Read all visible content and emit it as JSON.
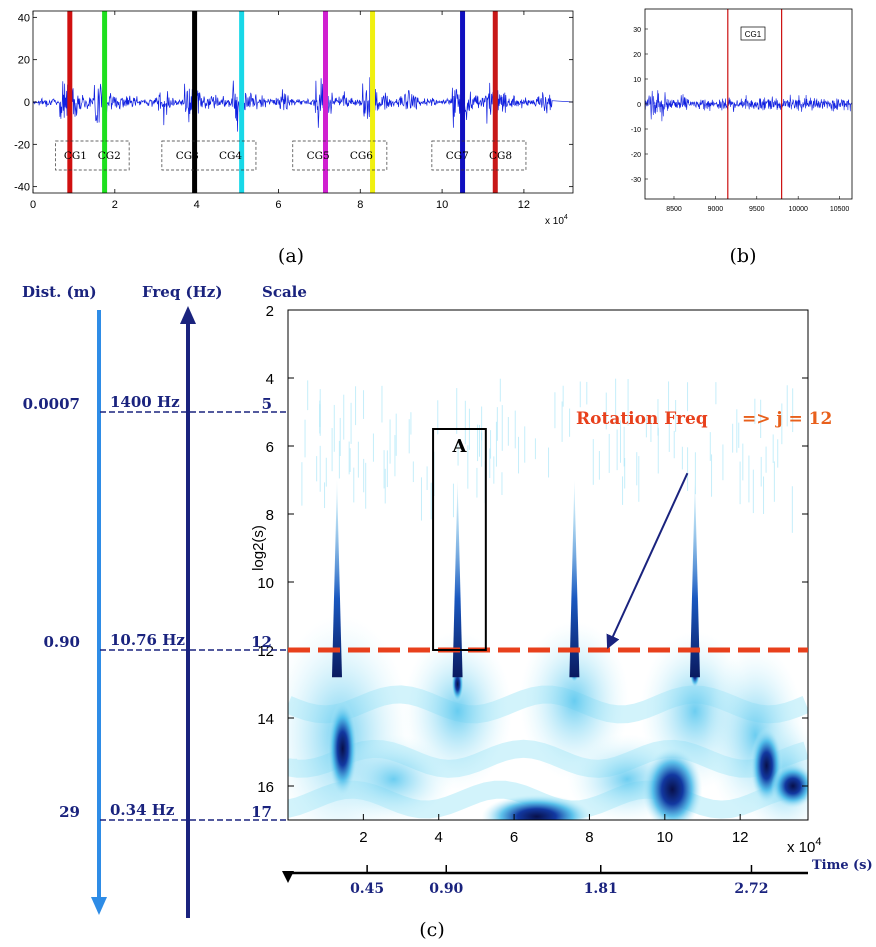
{
  "panel_labels": {
    "a": "(a)",
    "b": "(b)",
    "c": "(c)"
  },
  "colors": {
    "signal": "#1020e0",
    "navy": "#1a237e",
    "light_blue_axis": "#2e8ce6",
    "rotation_line": "#e8401c",
    "orange_text": "#e8601c"
  },
  "chart_data": [
    {
      "type": "line",
      "panel": "a",
      "xlim": [
        0,
        13.2
      ],
      "ylim": [
        -43,
        43
      ],
      "xticks": [
        "0",
        "2",
        "4",
        "6",
        "8",
        "10",
        "12"
      ],
      "yticks": [
        "40",
        "20",
        "0",
        "-20",
        "-40"
      ],
      "x_multiplier": "x 10",
      "x_multiplier_exp": "4",
      "markers": [
        {
          "x": 0.9,
          "color": "#d01010"
        },
        {
          "x": 1.75,
          "color": "#1ee01e"
        },
        {
          "x": 3.95,
          "color": "#000000"
        },
        {
          "x": 5.1,
          "color": "#18d8e8"
        },
        {
          "x": 7.15,
          "color": "#d020d0"
        },
        {
          "x": 8.3,
          "color": "#f0f010"
        },
        {
          "x": 10.5,
          "color": "#1010c0"
        },
        {
          "x": 11.3,
          "color": "#c81818"
        }
      ],
      "groups": [
        {
          "labels": [
            "CG1",
            "CG2"
          ],
          "x0": 0.55,
          "x1": 2.35
        },
        {
          "labels": [
            "CG3",
            "CG4"
          ],
          "x0": 3.15,
          "x1": 5.45
        },
        {
          "labels": [
            "CG5",
            "CG6"
          ],
          "x0": 6.35,
          "x1": 8.65
        },
        {
          "labels": [
            "CG7",
            "CG8"
          ],
          "x0": 9.75,
          "x1": 12.05
        }
      ]
    },
    {
      "type": "line",
      "panel": "b",
      "xlim": [
        8150,
        10650
      ],
      "ylim": [
        -38,
        38
      ],
      "xticks": [
        "8500",
        "9000",
        "9500",
        "10000",
        "10500"
      ],
      "yticks": [
        "30",
        "20",
        "10",
        "0",
        "-10",
        "-20",
        "-30"
      ],
      "markers": [
        {
          "x": 9150,
          "color": "#cc1010"
        },
        {
          "x": 9800,
          "color": "#cc1010"
        }
      ],
      "box_label": "CG1"
    },
    {
      "type": "heatmap",
      "panel": "c",
      "xlim": [
        0,
        13.8
      ],
      "ylim": [
        2,
        17
      ],
      "xticks": [
        "2",
        "4",
        "6",
        "8",
        "10",
        "12"
      ],
      "x_multiplier": "x 10",
      "x_multiplier_exp": "4",
      "yticks": [
        "2",
        "4",
        "6",
        "8",
        "10",
        "12",
        "14",
        "16"
      ],
      "ylabel": "log2(s)",
      "rotation_line_scale": 12,
      "rotation_label": "Rotation Freq",
      "rotation_j": "=> j = 12",
      "box_label": "A",
      "box": {
        "x0": 3.85,
        "x1": 5.25,
        "y0": 5.5,
        "y1": 12
      },
      "arrow": {
        "from": [
          10.6,
          6.8
        ],
        "to": [
          8.5,
          11.9
        ]
      },
      "spikes": [
        1.3,
        4.5,
        7.6,
        10.8
      ],
      "time_axis": {
        "label": "Time",
        "unit": "(s)",
        "ticks": [
          {
            "x": 2.1,
            "label": "0.45"
          },
          {
            "x": 4.2,
            "label": "0.90"
          },
          {
            "x": 8.3,
            "label": "1.81"
          },
          {
            "x": 12.3,
            "label": "2.72"
          }
        ]
      },
      "left_scales": {
        "dist_header": "Dist. (m)",
        "freq_header": "Freq (Hz)",
        "scale_header": "Scale",
        "rows": [
          {
            "scale_y": 5,
            "dist": "0.0007",
            "freq": "1400 Hz",
            "scale": "5"
          },
          {
            "scale_y": 12,
            "dist": "0.90",
            "freq": "10.76 Hz",
            "scale": "12"
          },
          {
            "scale_y": 17,
            "dist": "29",
            "freq": "0.34 Hz",
            "scale": "17"
          }
        ]
      }
    }
  ]
}
